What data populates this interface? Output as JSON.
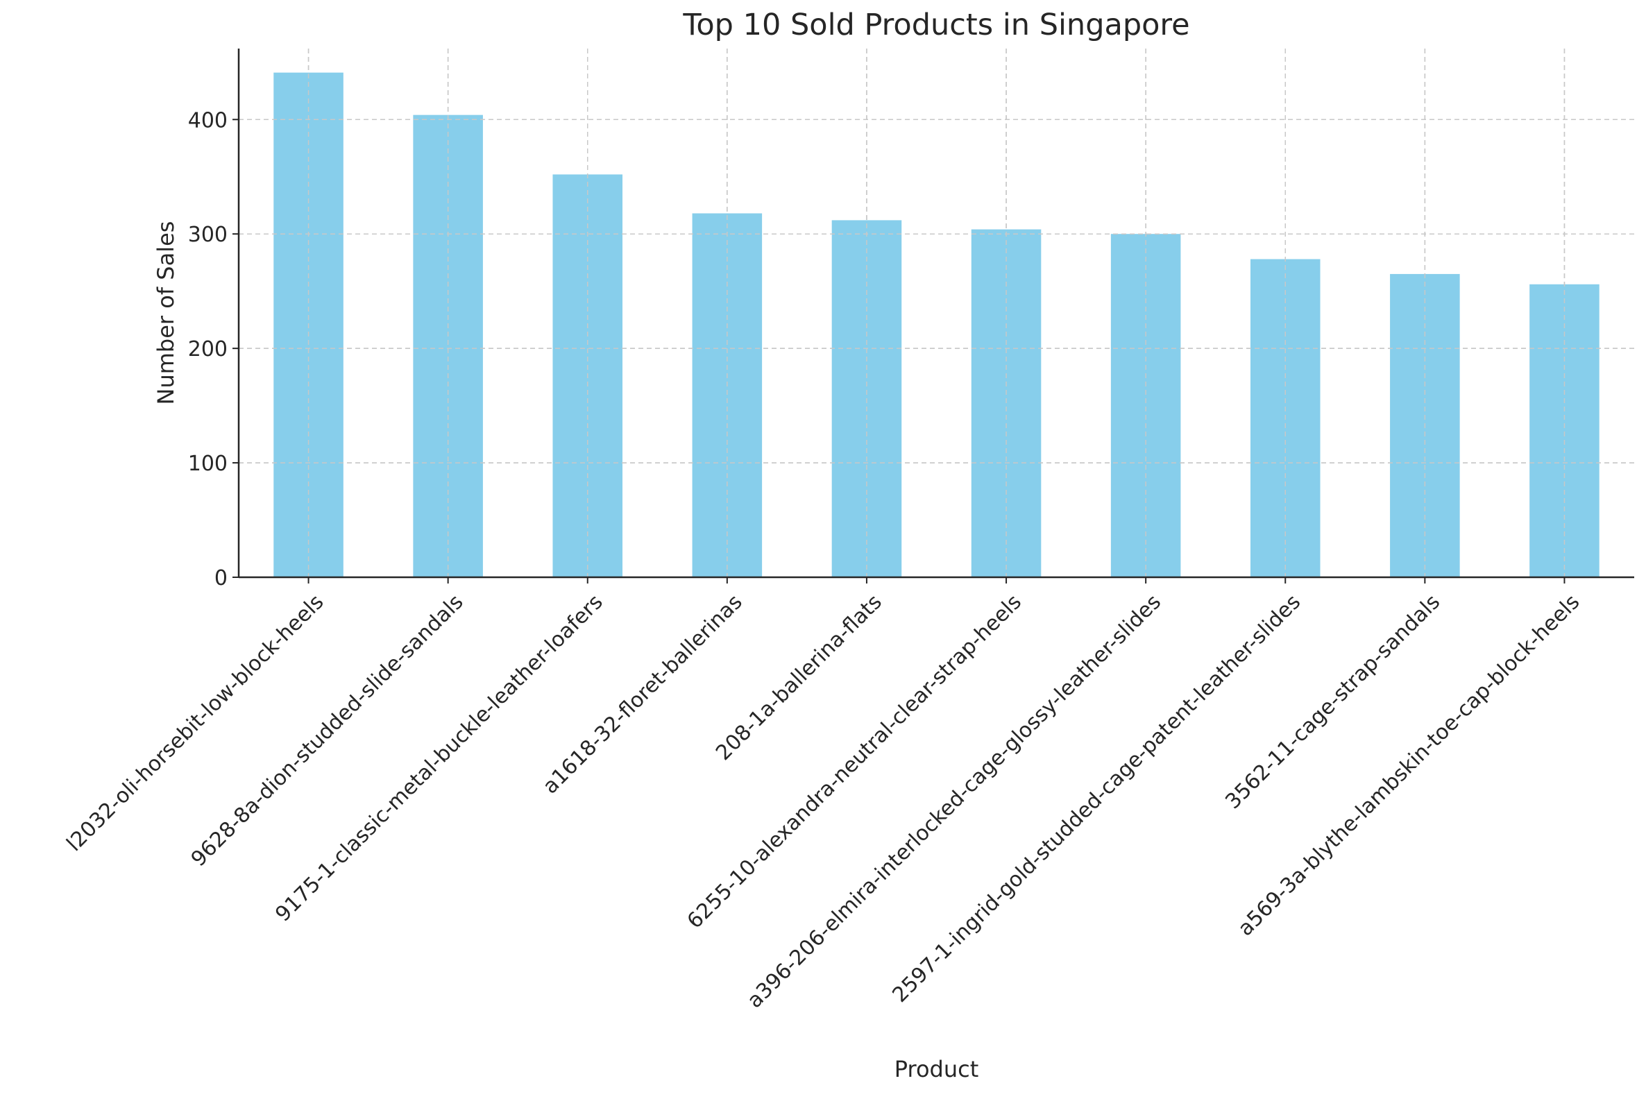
{
  "chart_data": {
    "type": "bar",
    "title": "Top 10 Sold Products in Singapore",
    "xlabel": "Product",
    "ylabel": "Number of Sales",
    "categories": [
      "l2032-oli-horsebit-low-block-heels",
      "9628-8a-dion-studded-slide-sandals",
      "9175-1-classic-metal-buckle-leather-loafers",
      "a1618-32-floret-ballerinas",
      "208-1a-ballerina-flats",
      "6255-10-alexandra-neutral-clear-strap-heels",
      "a396-206-elmira-interlocked-cage-glossy-leather-slides",
      "2597-1-ingrid-gold-studded-cage-patent-leather-slides",
      "3562-11-cage-strap-sandals",
      "a569-3a-blythe-lambskin-toe-cap-block-heels"
    ],
    "values": [
      441,
      404,
      352,
      318,
      312,
      304,
      300,
      278,
      265,
      256
    ],
    "ylim": [
      0,
      462
    ],
    "yticks": [
      0,
      100,
      200,
      300,
      400
    ],
    "grid": true,
    "bar_color": "#87ceeb",
    "x_tick_rotation_deg": 45
  }
}
